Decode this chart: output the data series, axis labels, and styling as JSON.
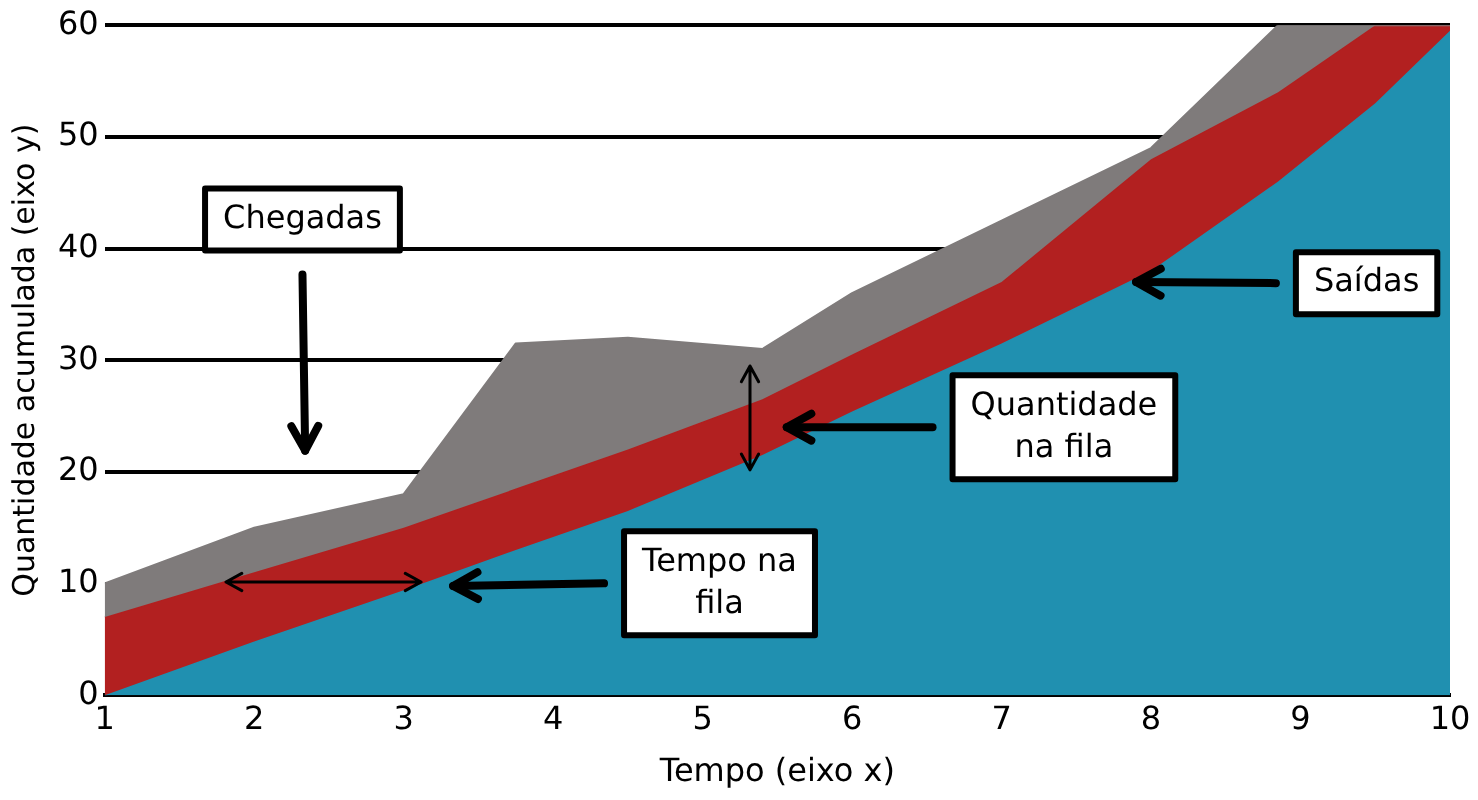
{
  "chart_data": {
    "type": "area",
    "xlabel": "Tempo (eixo x)",
    "ylabel": "Quantidade acumulada (eixo y)",
    "xlim": [
      1,
      10
    ],
    "ylim": [
      0,
      60
    ],
    "xticks": [
      1,
      2,
      3,
      4,
      5,
      6,
      7,
      8,
      9,
      10
    ],
    "yticks": [
      0,
      10,
      20,
      30,
      40,
      50,
      60
    ],
    "grid": "y",
    "legend": false,
    "marker": "none",
    "x": [
      1,
      2,
      3,
      3.75,
      4.5,
      5.4,
      6,
      7,
      8,
      8.85,
      9.5,
      10
    ],
    "series": [
      {
        "color": "#7f7b7b",
        "values": [
          10,
          15,
          18,
          31.5,
          32,
          31,
          36,
          42.5,
          49,
          60,
          60,
          60
        ]
      },
      {
        "color": "#b22020",
        "values": [
          7,
          11,
          15,
          18.5,
          22,
          26.5,
          30.5,
          37,
          48,
          54,
          60,
          60
        ]
      },
      {
        "color": "#2090b0",
        "values": [
          0,
          4.8,
          9.4,
          13,
          16.5,
          21.5,
          25.4,
          31.5,
          38,
          46,
          53,
          59.5
        ]
      }
    ],
    "annotations": [
      "Chegadas",
      {
        "text": "Saídas",
        "x": 7.9,
        "y": 37
      },
      "Quantidade na fila",
      "Tempo na fila"
    ]
  }
}
